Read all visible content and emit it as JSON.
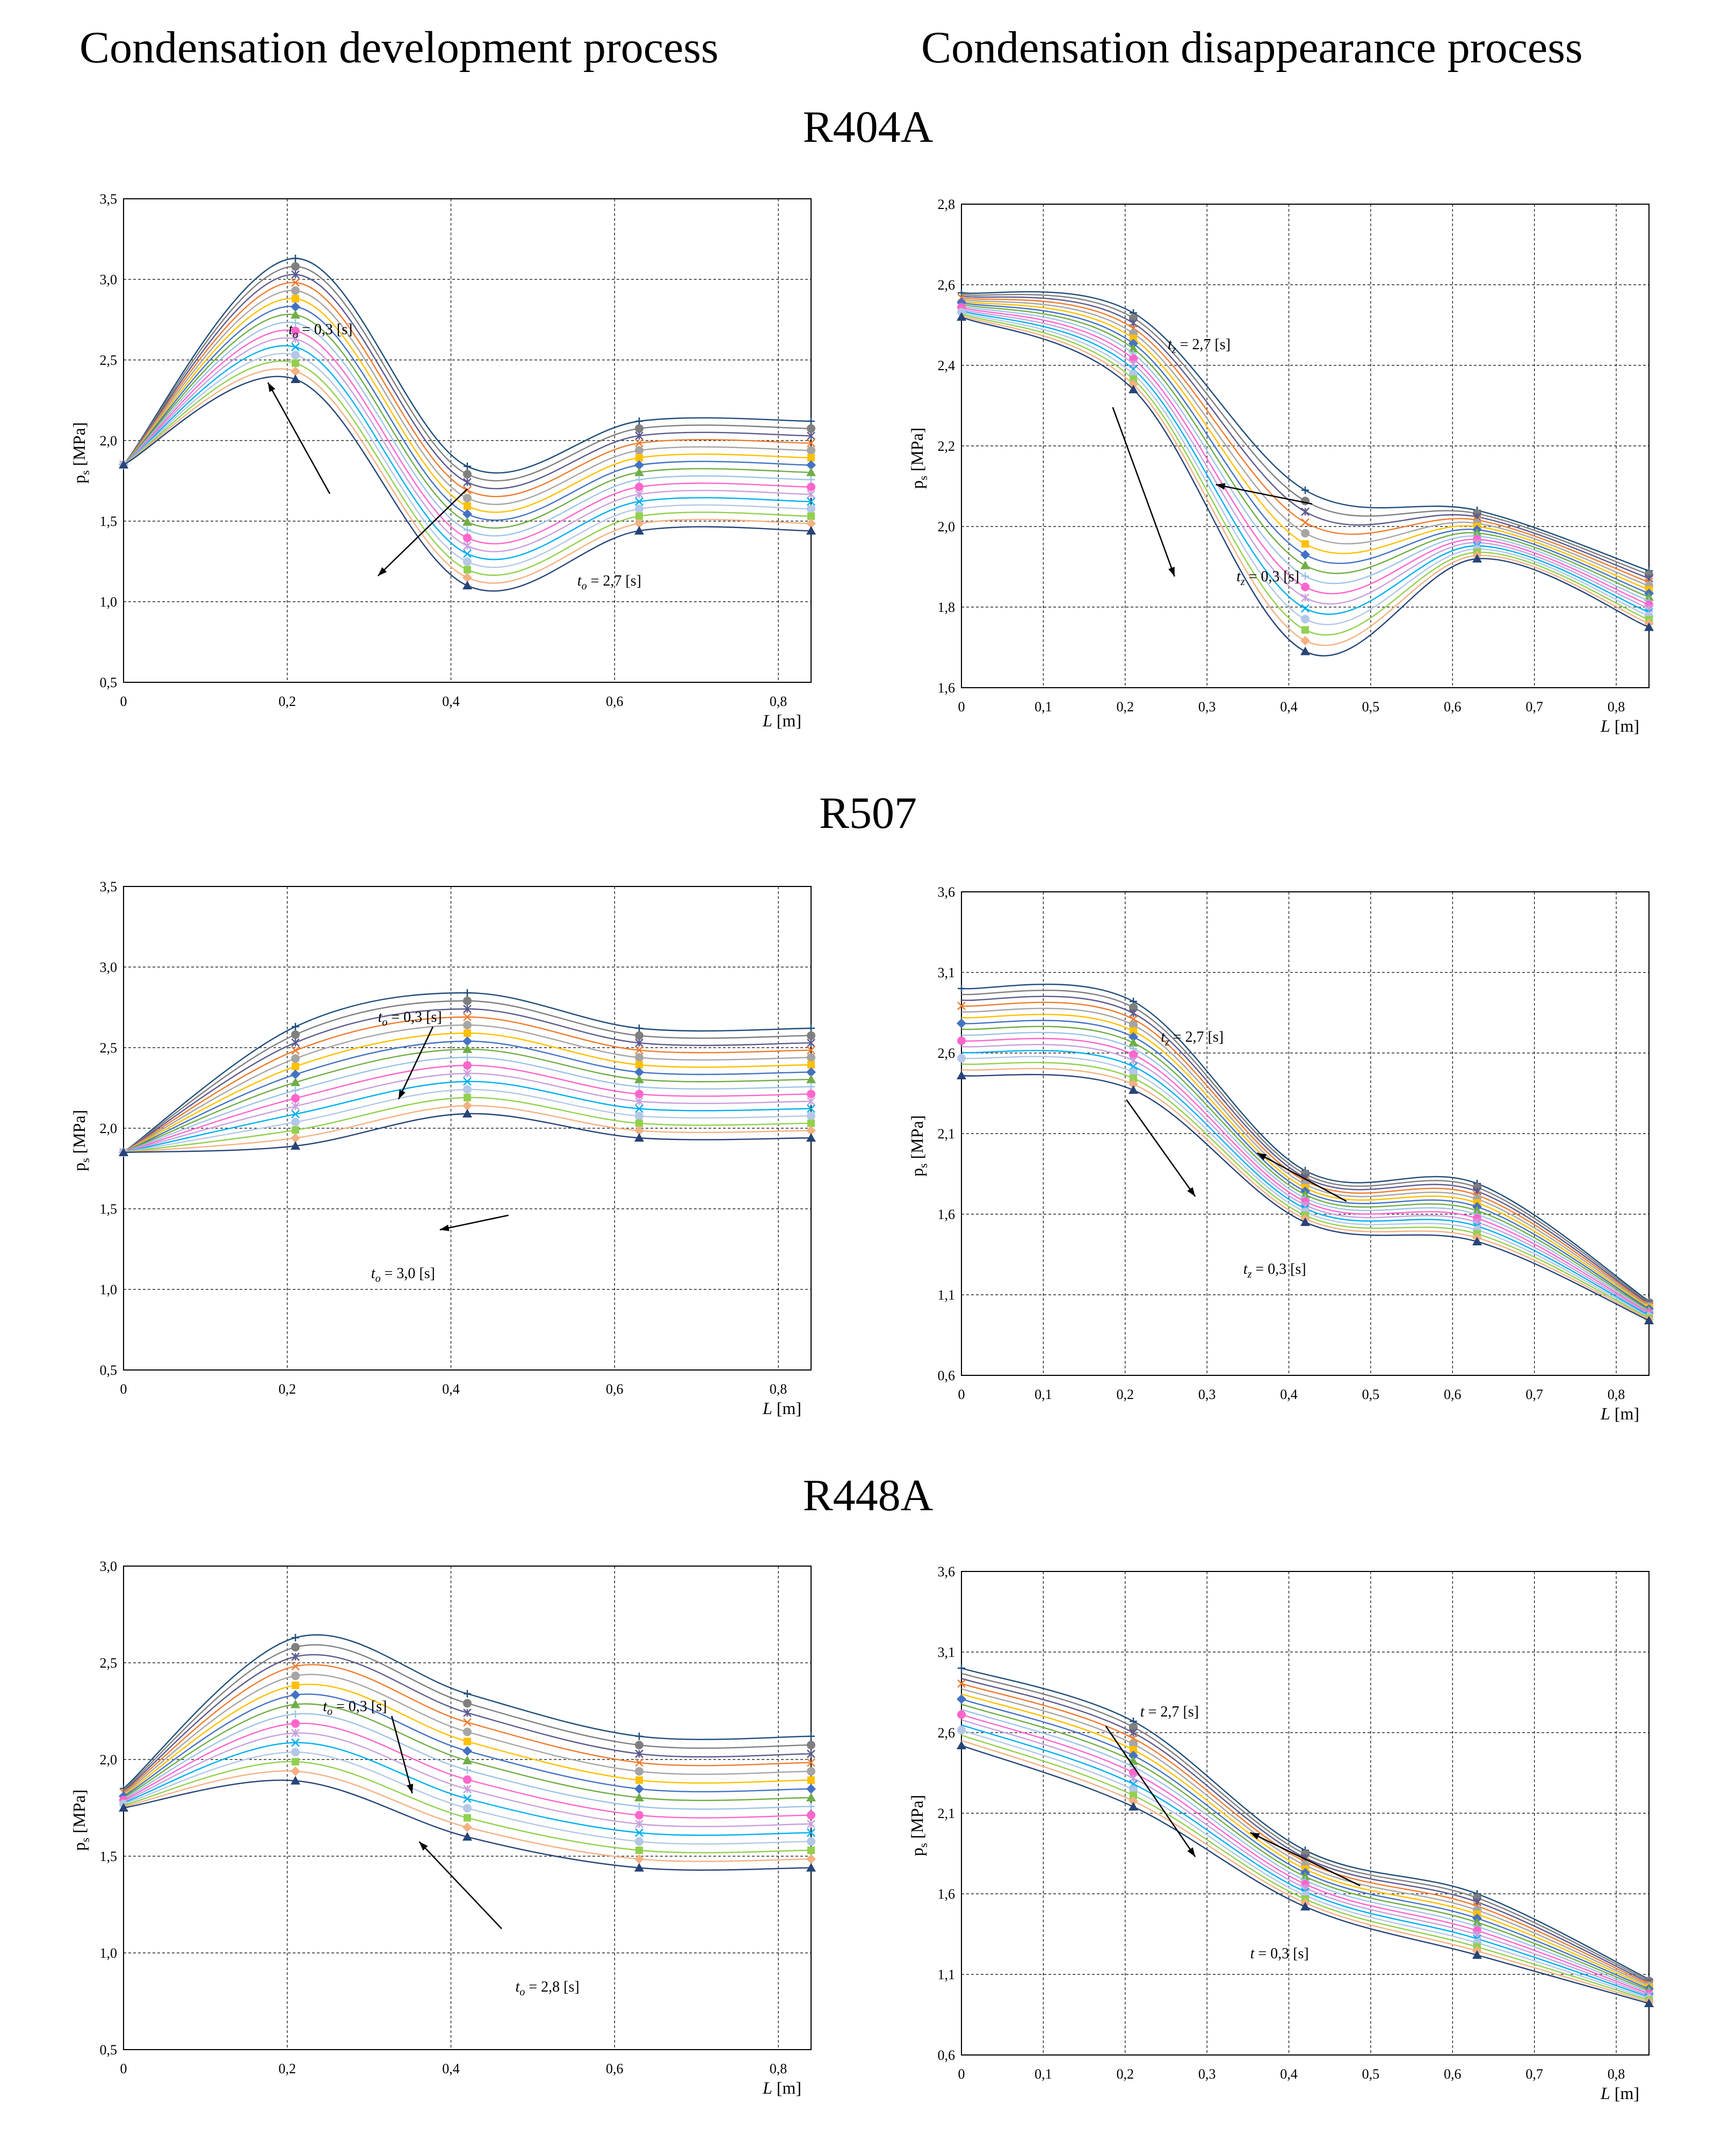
{
  "headers": {
    "left": "Condensation development process",
    "right": "Condensation disappearance process"
  },
  "refrigerants": [
    "R404A",
    "R507",
    "R448A"
  ],
  "palette": [
    "#1f4e79",
    "#7f7f7f",
    "#5b5b8f",
    "#ed7d31",
    "#a5a5a5",
    "#ffc000",
    "#4472c4",
    "#70ad47",
    "#9dc3e6",
    "#ff66cc",
    "#c9a0dc",
    "#00b0f0",
    "#b4c7e7",
    "#92d050",
    "#f4b183",
    "#264478",
    "#843c0c",
    "#636363",
    "#7030a0",
    "#ff00ff"
  ],
  "chart_data": [
    {
      "type": "line",
      "refrigerant": "R404A",
      "process": "development",
      "xlabel": "L [m]",
      "ylabel": "ps [MPa]",
      "x": [
        0,
        0.21,
        0.42,
        0.63,
        0.84
      ],
      "xlim": [
        0,
        0.84
      ],
      "xticks": [
        0,
        0.2,
        0.4,
        0.6,
        0.8
      ],
      "xtick_labels": [
        "0",
        "0,2",
        "0,4",
        "0,6",
        "0,8"
      ],
      "ylim": [
        0.5,
        3.5
      ],
      "yticks": [
        0.5,
        1.0,
        1.5,
        2.0,
        2.5,
        3.0,
        3.5
      ],
      "ytick_labels": [
        "0,5",
        "1,0",
        "1,5",
        "2,0",
        "2,5",
        "3,0",
        "3,5"
      ],
      "series_top": [
        1.85,
        3.13,
        1.84,
        2.12,
        2.12
      ],
      "series_bottom": [
        1.85,
        2.38,
        1.1,
        1.44,
        1.44
      ],
      "series_count": 16,
      "annotations": [
        {
          "text": "t",
          "sub": "o",
          "rest": " = 2,7 [s]"
        },
        {
          "text": "t",
          "sub": "o",
          "rest": " = 0,3 [s]"
        }
      ]
    },
    {
      "type": "line",
      "refrigerant": "R404A",
      "process": "disappearance",
      "xlabel": "L [m]",
      "ylabel": "ps [MPa]",
      "x": [
        0,
        0.21,
        0.42,
        0.63,
        0.84
      ],
      "xlim": [
        0,
        0.84
      ],
      "xticks": [
        0,
        0.1,
        0.2,
        0.3,
        0.4,
        0.5,
        0.6,
        0.7,
        0.8
      ],
      "xtick_labels": [
        "0",
        "0,1",
        "0,2",
        "0,3",
        "0,4",
        "0,5",
        "0,6",
        "0,7",
        "0,8"
      ],
      "ylim": [
        1.6,
        2.8
      ],
      "yticks": [
        1.6,
        1.8,
        2.0,
        2.2,
        2.4,
        2.6,
        2.8
      ],
      "ytick_labels": [
        "1,6",
        "1,8",
        "2,0",
        "2,2",
        "2,4",
        "2,6",
        "2,8"
      ],
      "series_top": [
        2.58,
        2.53,
        2.09,
        2.04,
        1.89
      ],
      "series_bottom": [
        2.52,
        2.34,
        1.69,
        1.92,
        1.75
      ],
      "series_count": 16,
      "annotations": [
        {
          "text": "t",
          "sub": "z",
          "rest": " = 0,3 [s]"
        },
        {
          "text": "t",
          "sub": "z",
          "rest": " = 2,7 [s]"
        }
      ]
    },
    {
      "type": "line",
      "refrigerant": "R507",
      "process": "development",
      "xlabel": "L [m]",
      "ylabel": "ps [MPa]",
      "x": [
        0,
        0.21,
        0.42,
        0.63,
        0.84
      ],
      "xlim": [
        0,
        0.84
      ],
      "xticks": [
        0,
        0.2,
        0.4,
        0.6,
        0.8
      ],
      "xtick_labels": [
        "0",
        "0,2",
        "0,4",
        "0,6",
        "0,8"
      ],
      "ylim": [
        0.5,
        3.5
      ],
      "yticks": [
        0.5,
        1.0,
        1.5,
        2.0,
        2.5,
        3.0,
        3.5
      ],
      "ytick_labels": [
        "0,5",
        "1,0",
        "1,5",
        "2,0",
        "2,5",
        "3,0",
        "3,5"
      ],
      "series_top": [
        1.85,
        2.63,
        2.84,
        2.62,
        2.62
      ],
      "series_bottom": [
        1.85,
        1.89,
        2.09,
        1.94,
        1.94
      ],
      "series_count": 16,
      "annotations": [
        {
          "text": "t",
          "sub": "o",
          "rest": " = 3,0 [s]"
        },
        {
          "text": "t",
          "sub": "o",
          "rest": " = 0,3 [s]"
        }
      ]
    },
    {
      "type": "line",
      "refrigerant": "R507",
      "process": "disappearance",
      "xlabel": "L [m]",
      "ylabel": "ps [MPa]",
      "x": [
        0,
        0.21,
        0.42,
        0.63,
        0.84
      ],
      "xlim": [
        0,
        0.84
      ],
      "xticks": [
        0,
        0.1,
        0.2,
        0.3,
        0.4,
        0.5,
        0.6,
        0.7,
        0.8
      ],
      "xtick_labels": [
        "0",
        "0,1",
        "0,2",
        "0,3",
        "0,4",
        "0,5",
        "0,6",
        "0,7",
        "0,8"
      ],
      "ylim": [
        0.6,
        3.6
      ],
      "yticks": [
        0.6,
        1.1,
        1.6,
        2.1,
        2.6,
        3.1,
        3.6
      ],
      "ytick_labels": [
        "0,6",
        "1,1",
        "1,6",
        "2,1",
        "2,6",
        "3,1",
        "3,6"
      ],
      "series_top": [
        3.0,
        2.92,
        1.87,
        1.79,
        1.06
      ],
      "series_bottom": [
        2.46,
        2.37,
        1.55,
        1.43,
        0.94
      ],
      "series_count": 16,
      "annotations": [
        {
          "text": "t",
          "sub": "z",
          "rest": " = 0,3 [s]"
        },
        {
          "text": "t",
          "sub": "z",
          "rest": " = 2,7 [s]"
        }
      ]
    },
    {
      "type": "line",
      "refrigerant": "R448A",
      "process": "development",
      "xlabel": "L [m]",
      "ylabel": "ps [MPa]",
      "x": [
        0,
        0.21,
        0.42,
        0.63,
        0.84
      ],
      "xlim": [
        0,
        0.84
      ],
      "xticks": [
        0,
        0.2,
        0.4,
        0.6,
        0.8
      ],
      "xtick_labels": [
        "0",
        "0,2",
        "0,4",
        "0,6",
        "0,8"
      ],
      "ylim": [
        0.5,
        3.0
      ],
      "yticks": [
        0.5,
        1.0,
        1.5,
        2.0,
        2.5,
        3.0
      ],
      "ytick_labels": [
        "0,5",
        "1,0",
        "1,5",
        "2,0",
        "2,5",
        "3,0"
      ],
      "series_top": [
        1.85,
        2.63,
        2.34,
        2.12,
        2.12
      ],
      "series_bottom": [
        1.75,
        1.89,
        1.6,
        1.44,
        1.44
      ],
      "series_count": 16,
      "annotations": [
        {
          "text": "t",
          "sub": "o",
          "rest": " = 2,8 [s]"
        },
        {
          "text": "t",
          "sub": "o",
          "rest": " = 0,3 [s]"
        }
      ]
    },
    {
      "type": "line",
      "refrigerant": "R448A",
      "process": "disappearance",
      "xlabel": "L [m]",
      "ylabel": "ps [MPa]",
      "x": [
        0,
        0.21,
        0.42,
        0.63,
        0.84
      ],
      "xlim": [
        0,
        0.84
      ],
      "xticks": [
        0,
        0.1,
        0.2,
        0.3,
        0.4,
        0.5,
        0.6,
        0.7,
        0.8
      ],
      "xtick_labels": [
        "0",
        "0,1",
        "0,2",
        "0,3",
        "0,4",
        "0,5",
        "0,6",
        "0,7",
        "0,8"
      ],
      "ylim": [
        0.6,
        3.6
      ],
      "yticks": [
        0.6,
        1.1,
        1.6,
        2.1,
        2.6,
        3.1,
        3.6
      ],
      "ytick_labels": [
        "0,6",
        "1,1",
        "1,6",
        "2,1",
        "2,6",
        "3,1",
        "3,6"
      ],
      "series_top": [
        3.0,
        2.67,
        1.87,
        1.6,
        1.07
      ],
      "series_bottom": [
        2.52,
        2.14,
        1.52,
        1.22,
        0.92
      ],
      "series_count": 16,
      "annotations": [
        {
          "text": "t",
          "sub": "",
          "rest": " = 0,3 [s]"
        },
        {
          "text": "t",
          "sub": "",
          "rest": " = 2,7 [s]"
        }
      ]
    }
  ]
}
